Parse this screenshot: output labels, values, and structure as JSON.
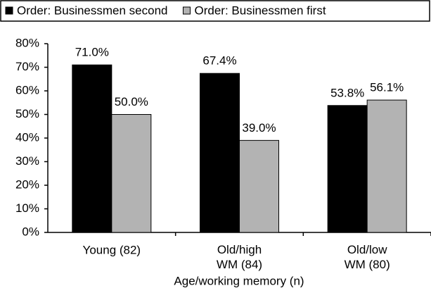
{
  "chart_data": {
    "type": "bar",
    "categories": [
      "Young (82)",
      "Old/high\nWM (84)",
      "Old/low\nWM (80)"
    ],
    "series": [
      {
        "name": "Order: Businessmen second",
        "color": "#000000",
        "values": [
          71.0,
          67.4,
          53.8
        ],
        "value_labels": [
          "71.0%",
          "67.4%",
          "53.8%"
        ]
      },
      {
        "name": "Order: Businessmen first",
        "color": "#b3b3b3",
        "values": [
          50.0,
          39.0,
          56.1
        ],
        "value_labels": [
          "50.0%",
          "39.0%",
          "56.1%"
        ]
      }
    ],
    "xlabel": "Age/working memory (n)",
    "ylim": [
      0,
      80
    ],
    "yticks": [
      {
        "value": 0,
        "label": "0%"
      },
      {
        "value": 10,
        "label": "10%"
      },
      {
        "value": 20,
        "label": "20%"
      },
      {
        "value": 30,
        "label": "30%"
      },
      {
        "value": 40,
        "label": "40%"
      },
      {
        "value": 50,
        "label": "50%"
      },
      {
        "value": 60,
        "label": "60%"
      },
      {
        "value": 70,
        "label": "70%"
      },
      {
        "value": 80,
        "label": "80%"
      }
    ],
    "legend": "top"
  }
}
